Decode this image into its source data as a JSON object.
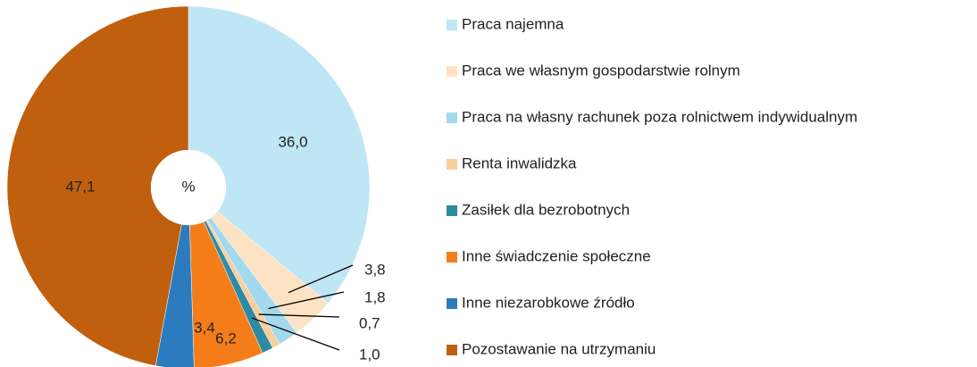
{
  "chart_data": {
    "type": "donut",
    "center_label": "%",
    "categories": [
      "Praca najemna",
      "Praca we własnym gospodarstwie rolnym",
      "Praca na własny rachunek poza rolnictwem indywidualnym",
      "Renta inwalidzka",
      "Zasiłek dla bezrobotnych",
      "Inne świadczenie społeczne",
      "Inne niezarobkowe źródło",
      "Pozostawanie na utrzymaniu"
    ],
    "values": [
      36.0,
      3.8,
      1.8,
      0.7,
      1.0,
      6.2,
      3.4,
      47.1
    ],
    "value_labels": [
      "36,0",
      "3,8",
      "1,8",
      "0,7",
      "1,0",
      "6,2",
      "3,4",
      "47,1"
    ],
    "colors": [
      "#bfe6f4",
      "#fde2c4",
      "#a3d9ee",
      "#fbcd9c",
      "#2f8ba1",
      "#f47d1a",
      "#2d7bbf",
      "#c0600f"
    ],
    "legend": "right"
  }
}
